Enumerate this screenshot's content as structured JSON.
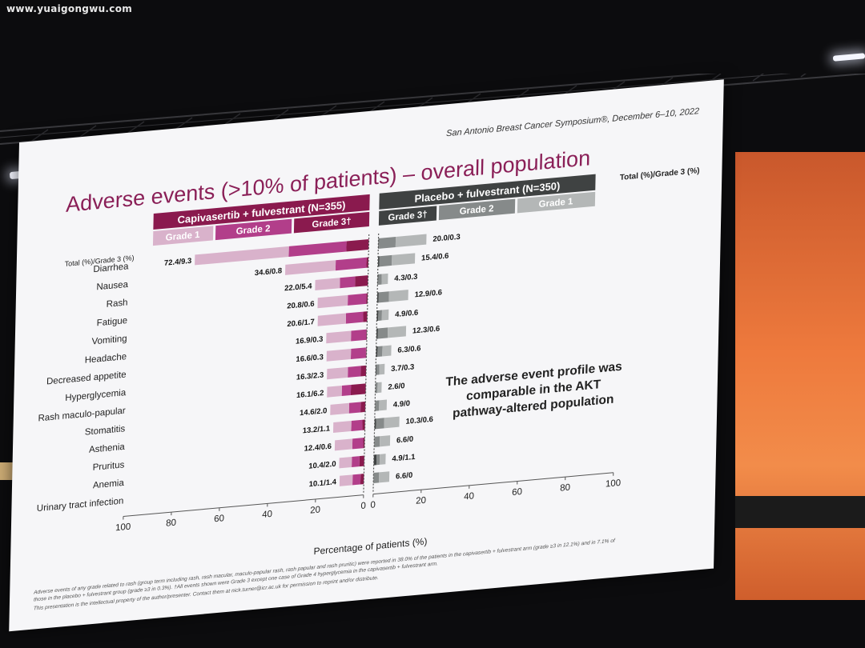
{
  "watermark": "www.yuaigongwu.com",
  "slide": {
    "conference": "San Antonio Breast Cancer Symposium®, December 6–10, 2022",
    "title": "Adverse events (>10% of patients) – overall population",
    "note": [
      "The adverse event profile was",
      "comparable in the AKT",
      "pathway-altered population"
    ],
    "footnotes": [
      "Adverse events of any grade related to rash (group term including rash, rash macular, maculo-papular rash, rash papular and rash pruritic) were reported in 38.0% of the patients in the capivasertib + fulvestrant arm (grade ≥3 in 12.1%) and in 7.1% of",
      "those in the placebo + fulvestrant group (grade ≥3 in 0.3%). †All events shown were Grade 3 except one case of Grade 4 hyperglycemia in the capivasertib + fulvestrant arm.",
      "This presentation is the intellectual property of the author/presenter. Contact them at nick.turner@icr.ac.uk for permission to reprint and/or distribute."
    ]
  },
  "colors": {
    "capi_g1": "#d9b2cb",
    "capi_g2": "#b23e8a",
    "capi_g3": "#8a1a4e",
    "pbo_g1": "#b4b7b7",
    "pbo_g2": "#868a8a",
    "pbo_g3": "#3f4242",
    "title": "#8a1f57"
  },
  "chart_data": {
    "type": "bar",
    "orientation": "horizontal-butterfly",
    "xlabel": "Percentage of patients (%)",
    "left_axis_ticks": [
      "100",
      "80",
      "60",
      "40",
      "20",
      "0"
    ],
    "right_axis_ticks": [
      "0",
      "20",
      "40",
      "60",
      "80",
      "100"
    ],
    "xlim": [
      0,
      100
    ],
    "value_format_label": "Total (%)/Grade 3 (%)",
    "legend": {
      "capivasertib": {
        "name": "Capivasertib + fulvestrant (N=355)",
        "grades": [
          "Grade 1",
          "Grade 2",
          "Grade 3†"
        ]
      },
      "placebo": {
        "name": "Placebo + fulvestrant (N=350)",
        "grades": [
          "Grade 3†",
          "Grade 2",
          "Grade 1"
        ]
      }
    },
    "categories": [
      "Diarrhea",
      "Nausea",
      "Rash",
      "Fatigue",
      "Vomiting",
      "Headache",
      "Decreased appetite",
      "Hyperglycemia",
      "Rash maculo-papular",
      "Stomatitis",
      "Asthenia",
      "Pruritus",
      "Anemia",
      "Urinary tract infection"
    ],
    "capivasertib_total": [
      72.4,
      34.6,
      22.0,
      20.8,
      20.6,
      16.9,
      16.6,
      16.3,
      16.1,
      14.6,
      13.2,
      12.4,
      10.4,
      10.1
    ],
    "capivasertib_grade3": [
      9.3,
      0.8,
      5.4,
      0.6,
      1.7,
      0.3,
      0.3,
      2.3,
      6.2,
      2.0,
      1.1,
      0.6,
      2.0,
      1.4
    ],
    "capivasertib_labels": [
      "72.4/9.3",
      "34.6/0.8",
      "22.0/5.4",
      "20.8/0.6",
      "20.6/1.7",
      "16.9/0.3",
      "16.6/0.3",
      "16.3/2.3",
      "16.1/6.2",
      "14.6/2.0",
      "13.2/1.1",
      "12.4/0.6",
      "10.4/2.0",
      "10.1/1.4"
    ],
    "placebo_total": [
      20.0,
      15.4,
      4.3,
      12.9,
      4.9,
      12.3,
      6.3,
      3.7,
      2.6,
      4.9,
      10.3,
      6.6,
      4.9,
      6.6
    ],
    "placebo_grade3": [
      0.3,
      0.6,
      0.3,
      0.6,
      0.6,
      0.6,
      0.6,
      0.3,
      0,
      0,
      0.6,
      0,
      1.1,
      0
    ],
    "placebo_labels": [
      "20.0/0.3",
      "15.4/0.6",
      "4.3/0.3",
      "12.9/0.6",
      "4.9/0.6",
      "12.3/0.6",
      "6.3/0.6",
      "3.7/0.3",
      "2.6/0",
      "4.9/0",
      "10.3/0.6",
      "6.6/0",
      "4.9/1.1",
      "6.6/0"
    ]
  }
}
